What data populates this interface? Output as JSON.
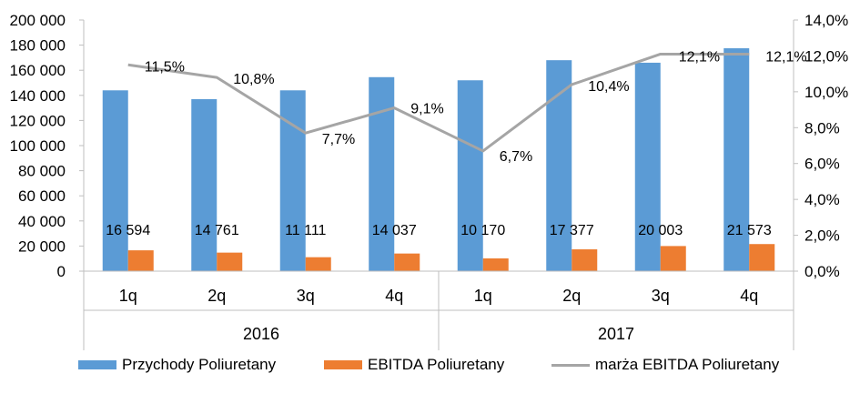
{
  "chart_data": {
    "type": "bar",
    "years": [
      "2016",
      "2017"
    ],
    "categories": [
      "1q",
      "2q",
      "3q",
      "4q",
      "1q",
      "2q",
      "3q",
      "4q"
    ],
    "series": [
      {
        "name": "Przychody Poliuretany",
        "kind": "bar",
        "axis": "left",
        "color": "#5B9BD5",
        "values": [
          144000,
          137000,
          144000,
          154500,
          152000,
          168000,
          166000,
          177500
        ]
      },
      {
        "name": "EBITDA Poliuretany",
        "kind": "bar",
        "axis": "left",
        "color": "#ED7D31",
        "values": [
          16594,
          14761,
          11111,
          14037,
          10170,
          17377,
          20003,
          21573
        ],
        "labels": [
          "16 594",
          "14 761",
          "11 111",
          "14 037",
          "10 170",
          "17 377",
          "20 003",
          "21 573"
        ]
      },
      {
        "name": "marża EBITDA Poliuretany",
        "kind": "line",
        "axis": "right",
        "color": "#A5A5A5",
        "values": [
          11.5,
          10.8,
          7.7,
          9.1,
          6.7,
          10.4,
          12.1,
          12.1
        ],
        "labels": [
          "11,5%",
          "10,8%",
          "7,7%",
          "9,1%",
          "6,7%",
          "10,4%",
          "12,1%",
          "12,1%"
        ]
      }
    ],
    "y_left": {
      "min": 0,
      "max": 200000,
      "ticks": [
        0,
        20000,
        40000,
        60000,
        80000,
        100000,
        120000,
        140000,
        160000,
        180000,
        200000
      ],
      "tick_labels": [
        "0",
        "20 000",
        "40 000",
        "60 000",
        "80 000",
        "100 000",
        "120 000",
        "140 000",
        "160 000",
        "180 000",
        "200 000"
      ]
    },
    "y_right": {
      "min": 0,
      "max": 14,
      "ticks": [
        0,
        2,
        4,
        6,
        8,
        10,
        12,
        14
      ],
      "tick_labels": [
        "0,0%",
        "2,0%",
        "4,0%",
        "6,0%",
        "8,0%",
        "10,0%",
        "12,0%",
        "14,0%"
      ]
    },
    "grid": false,
    "legend_position": "bottom"
  }
}
